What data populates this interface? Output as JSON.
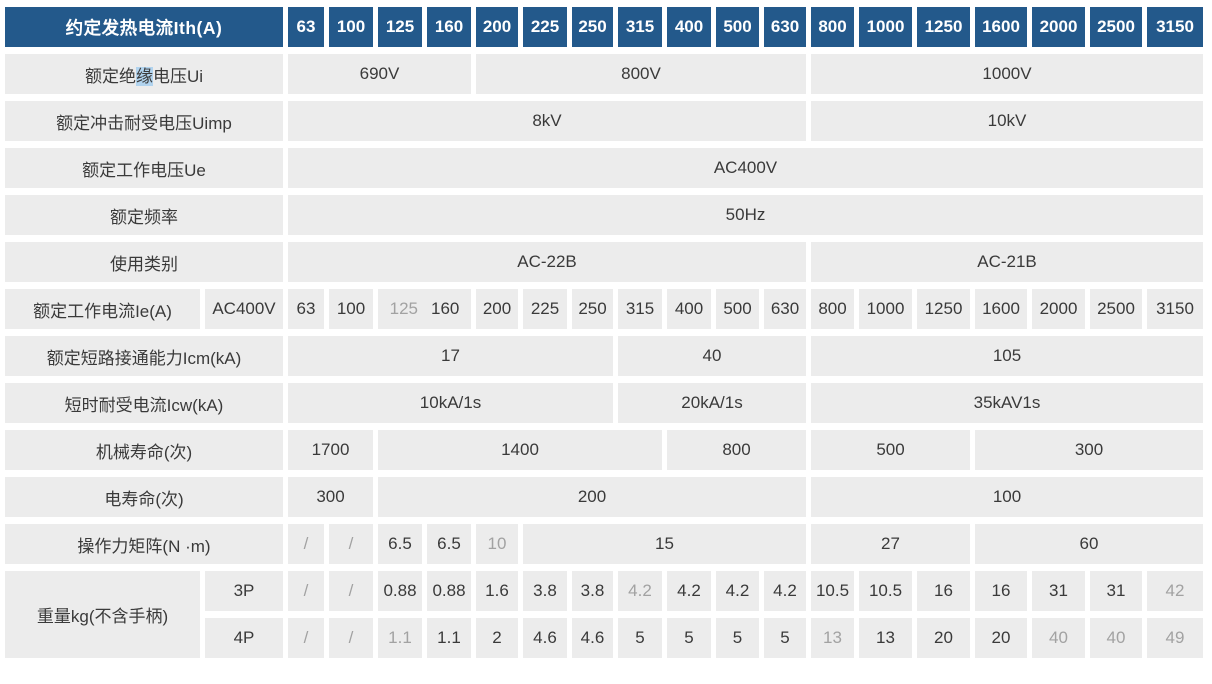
{
  "table": {
    "colors": {
      "header_bg": "#23598b",
      "header_text": "#ffffff",
      "cell_bg": "#ececec",
      "text": "#3a3a3a",
      "muted_text": "#a2a2a2",
      "selection_highlight": "#b1d3ee"
    },
    "header": {
      "label": "约定发热电流Ith(A)",
      "currents": [
        "63",
        "100",
        "125",
        "160",
        "200",
        "225",
        "250",
        "315",
        "400",
        "500",
        "630",
        "800",
        "1000",
        "1250",
        "1600",
        "2000",
        "2500",
        "3150"
      ]
    },
    "rows": [
      {
        "name": "rated-insulation-voltage-ui",
        "label": {
          "v": "额定绝缘电压Ui",
          "rich": [
            {
              "text": "额定绝"
            },
            {
              "text": "缘",
              "style": "hl"
            },
            {
              "text": "电压Ui"
            }
          ]
        },
        "cells": [
          {
            "v": "690V",
            "span": 4
          },
          {
            "v": "800V",
            "span": 7
          },
          {
            "v": "1000V",
            "span": 7
          }
        ]
      },
      {
        "name": "rated-impulse-withstand-voltage-uimp",
        "label": {
          "v": "额定冲击耐受电压Uimp"
        },
        "cells": [
          {
            "v": "8kV",
            "span": 11
          },
          {
            "v": "10kV",
            "span": 7
          }
        ]
      },
      {
        "name": "rated-working-voltage-ue",
        "label": {
          "v": "额定工作电压Ue"
        },
        "cells": [
          {
            "v": "AC400V",
            "span": 18
          }
        ]
      },
      {
        "name": "rated-frequency",
        "label": {
          "v": "额定频率"
        },
        "cells": [
          {
            "v": "50Hz",
            "span": 18
          }
        ]
      },
      {
        "name": "utilization-category",
        "label": {
          "v": "使用类别"
        },
        "cells": [
          {
            "v": "AC-22B",
            "span": 11
          },
          {
            "v": "AC-21B",
            "span": 7
          }
        ]
      },
      {
        "name": "rated-working-current-ie",
        "label": {
          "v": "额定工作电流Ie(A)"
        },
        "sub": "AC400V",
        "cells": [
          {
            "v": "63"
          },
          {
            "v": "100"
          },
          {
            "v": "125 160",
            "span": 2,
            "rich": [
              {
                "text": "125",
                "style": "muted"
              },
              {
                "text": "160",
                "style": "gap"
              }
            ]
          },
          {
            "v": "200"
          },
          {
            "v": "225"
          },
          {
            "v": "250"
          },
          {
            "v": "315"
          },
          {
            "v": "400"
          },
          {
            "v": "500"
          },
          {
            "v": "630"
          },
          {
            "v": "800"
          },
          {
            "v": "1000"
          },
          {
            "v": "1250"
          },
          {
            "v": "1600"
          },
          {
            "v": "2000"
          },
          {
            "v": "2500"
          },
          {
            "v": "3150"
          }
        ]
      },
      {
        "name": "rated-short-circuit-making-capacity-icm",
        "label": {
          "v": "额定短路接通能力Icm(kA)"
        },
        "cells": [
          {
            "v": "17",
            "span": 7
          },
          {
            "v": "40",
            "span": 4
          },
          {
            "v": "105",
            "span": 7
          }
        ]
      },
      {
        "name": "short-time-withstand-current-icw",
        "label": {
          "v": "短时耐受电流Icw(kA)"
        },
        "cells": [
          {
            "v": "10kA/1s",
            "span": 7
          },
          {
            "v": "20kA/1s",
            "span": 4
          },
          {
            "v": "35kAV1s",
            "span": 7
          }
        ]
      },
      {
        "name": "mechanical-life",
        "label": {
          "v": "机械寿命(次)"
        },
        "cells": [
          {
            "v": "1700",
            "span": 2
          },
          {
            "v": "1400",
            "span": 6
          },
          {
            "v": "800",
            "span": 3
          },
          {
            "v": "500",
            "span": 3
          },
          {
            "v": "300",
            "span": 4
          }
        ]
      },
      {
        "name": "electrical-life",
        "label": {
          "v": "电寿命(次)"
        },
        "cells": [
          {
            "v": "300",
            "span": 2
          },
          {
            "v": "200",
            "span": 9
          },
          {
            "v": "100",
            "span": 7
          }
        ]
      },
      {
        "name": "operating-torque",
        "label": {
          "v": "操作力矩阵(N ·m)"
        },
        "cells": [
          {
            "v": "/",
            "style": "muted"
          },
          {
            "v": "/",
            "style": "muted"
          },
          {
            "v": "6.5"
          },
          {
            "v": "6.5"
          },
          {
            "v": "10",
            "style": "muted"
          },
          {
            "v": "15",
            "span": 6
          },
          {
            "v": "27",
            "span": 3
          },
          {
            "v": "60",
            "span": 4
          }
        ]
      },
      {
        "name": "weight-3p",
        "label": {
          "v": "重量kg(不含手柄)",
          "rowspan": 2
        },
        "sub": "3P",
        "cells": [
          {
            "v": "/",
            "style": "muted"
          },
          {
            "v": "/",
            "style": "muted"
          },
          {
            "v": "0.88"
          },
          {
            "v": "0.88"
          },
          {
            "v": "1.6"
          },
          {
            "v": "3.8"
          },
          {
            "v": "3.8"
          },
          {
            "v": "4.2",
            "style": "muted"
          },
          {
            "v": "4.2"
          },
          {
            "v": "4.2"
          },
          {
            "v": "4.2"
          },
          {
            "v": "10.5"
          },
          {
            "v": "10.5"
          },
          {
            "v": "16"
          },
          {
            "v": "16"
          },
          {
            "v": "31"
          },
          {
            "v": "31"
          },
          {
            "v": "42",
            "style": "muted"
          }
        ]
      },
      {
        "name": "weight-4p",
        "sub": "4P",
        "cells": [
          {
            "v": "/",
            "style": "muted"
          },
          {
            "v": "/",
            "style": "muted"
          },
          {
            "v": "1.1",
            "style": "muted"
          },
          {
            "v": "1.1"
          },
          {
            "v": "2"
          },
          {
            "v": "4.6"
          },
          {
            "v": "4.6"
          },
          {
            "v": "5"
          },
          {
            "v": "5"
          },
          {
            "v": "5"
          },
          {
            "v": "5"
          },
          {
            "v": "13",
            "style": "muted"
          },
          {
            "v": "13"
          },
          {
            "v": "20"
          },
          {
            "v": "20"
          },
          {
            "v": "40",
            "style": "muted"
          },
          {
            "v": "40",
            "style": "muted"
          },
          {
            "v": "49",
            "style": "muted"
          }
        ]
      }
    ]
  }
}
